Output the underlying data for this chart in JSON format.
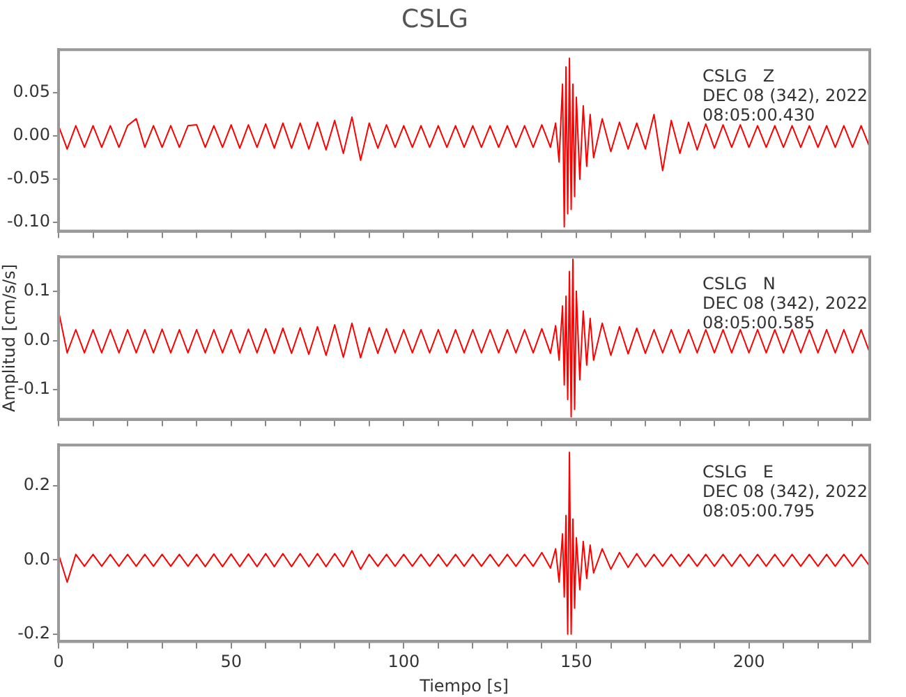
{
  "chart_data": [
    {
      "type": "line",
      "title": "CSLG",
      "annotations": [
        "CSLG   Z",
        "DEC 08 (342), 2022",
        "08:05:00.430"
      ],
      "marker": "none",
      "line_style": "solid",
      "grid": false,
      "legend": false,
      "tick_labels": "y",
      "x": [
        0,
        2.5,
        5,
        7.5,
        10,
        12.5,
        15,
        17.5,
        20,
        22.5,
        25,
        27.5,
        30,
        32.5,
        35,
        37.5,
        40,
        42.5,
        45,
        47.5,
        50,
        52.5,
        55,
        57.5,
        60,
        62.5,
        65,
        67.5,
        70,
        72.5,
        75,
        77.5,
        80,
        82.5,
        85,
        87.5,
        90,
        92.5,
        95,
        97.5,
        100,
        102.5,
        105,
        107.5,
        110,
        112.5,
        115,
        117.5,
        120,
        122.5,
        125,
        127.5,
        130,
        132.5,
        135,
        137.5,
        140,
        142.5,
        144,
        145,
        146,
        146.5,
        147,
        147.5,
        148,
        148.5,
        149,
        149.5,
        150,
        151,
        152,
        153,
        154,
        155,
        157.5,
        160,
        162.5,
        165,
        167.5,
        170,
        172.5,
        175,
        177.5,
        180,
        182.5,
        185,
        187.5,
        190,
        192.5,
        195,
        197.5,
        200,
        202.5,
        205,
        207.5,
        210,
        212.5,
        215,
        217.5,
        220,
        222.5,
        225,
        227.5,
        230,
        232.5,
        235
      ],
      "xlim": [
        0,
        235
      ],
      "xticks": [
        0,
        {
          "value": 10,
          "label": null
        },
        {
          "value": 20,
          "label": null
        },
        {
          "value": 30,
          "label": null
        },
        {
          "value": 40,
          "label": null
        },
        50,
        {
          "value": 60,
          "label": null
        },
        {
          "value": 70,
          "label": null
        },
        {
          "value": 80,
          "label": null
        },
        {
          "value": 90,
          "label": null
        },
        100,
        {
          "value": 110,
          "label": null
        },
        {
          "value": 120,
          "label": null
        },
        {
          "value": 130,
          "label": null
        },
        {
          "value": 140,
          "label": null
        },
        150,
        {
          "value": 160,
          "label": null
        },
        {
          "value": 170,
          "label": null
        },
        {
          "value": 180,
          "label": null
        },
        {
          "value": 190,
          "label": null
        },
        200,
        {
          "value": 210,
          "label": null
        },
        {
          "value": 220,
          "label": null
        },
        {
          "value": 230,
          "label": null
        }
      ],
      "ylim": [
        -0.11,
        0.1
      ],
      "yticks": [
        {
          "value": -0.1,
          "label": "-0.10"
        },
        {
          "value": -0.05,
          "label": "-0.05"
        },
        {
          "value": 0,
          "label": "0.00"
        },
        {
          "value": 0.05,
          "label": "0.05"
        }
      ],
      "series": [
        {
          "color": "#ff0000",
          "values": [
            0.012,
            -0.015,
            0.012,
            -0.013,
            0.012,
            -0.013,
            0.012,
            -0.013,
            0.012,
            0.02,
            -0.013,
            0.012,
            -0.013,
            0.012,
            -0.013,
            0.012,
            0.013,
            -0.013,
            0.012,
            -0.013,
            0.013,
            -0.014,
            0.013,
            -0.013,
            0.014,
            -0.014,
            0.015,
            -0.014,
            0.015,
            -0.015,
            0.016,
            -0.016,
            0.018,
            -0.02,
            0.022,
            -0.028,
            0.015,
            -0.014,
            0.013,
            -0.013,
            0.012,
            -0.013,
            0.012,
            -0.013,
            0.012,
            -0.013,
            0.012,
            -0.013,
            0.012,
            -0.013,
            0.012,
            -0.013,
            0.012,
            -0.013,
            0.012,
            -0.013,
            0.013,
            -0.013,
            0.015,
            -0.03,
            0.06,
            -0.105,
            0.08,
            -0.09,
            0.09,
            -0.085,
            0.06,
            -0.07,
            0.045,
            -0.05,
            0.035,
            -0.035,
            0.025,
            -0.025,
            0.02,
            -0.018,
            0.016,
            -0.015,
            0.015,
            -0.015,
            0.025,
            -0.04,
            0.018,
            -0.02,
            0.016,
            -0.016,
            0.014,
            -0.014,
            0.013,
            -0.013,
            0.013,
            -0.013,
            0.012,
            -0.013,
            0.012,
            -0.013,
            0.012,
            -0.013,
            0.012,
            -0.013,
            0.012,
            -0.013,
            0.012,
            -0.013,
            0.012,
            -0.013
          ]
        }
      ]
    },
    {
      "type": "line",
      "ylabel": "Amplitud [cm/s/s]",
      "annotations": [
        "CSLG   N",
        "DEC 08 (342), 2022",
        "08:05:00.585"
      ],
      "marker": "none",
      "line_style": "solid",
      "grid": false,
      "legend": false,
      "tick_labels": "y",
      "x": [
        0,
        2.5,
        5,
        7.5,
        10,
        12.5,
        15,
        17.5,
        20,
        22.5,
        25,
        27.5,
        30,
        32.5,
        35,
        37.5,
        40,
        42.5,
        45,
        47.5,
        50,
        52.5,
        55,
        57.5,
        60,
        62.5,
        65,
        67.5,
        70,
        72.5,
        75,
        77.5,
        80,
        82.5,
        85,
        87.5,
        90,
        92.5,
        95,
        97.5,
        100,
        102.5,
        105,
        107.5,
        110,
        112.5,
        115,
        117.5,
        120,
        122.5,
        125,
        127.5,
        130,
        132.5,
        135,
        137.5,
        140,
        142.5,
        144,
        145,
        146,
        146.5,
        147,
        147.5,
        148,
        148.5,
        149,
        149.5,
        150,
        151,
        152,
        153,
        154,
        155,
        157.5,
        160,
        162.5,
        165,
        167.5,
        170,
        172.5,
        175,
        177.5,
        180,
        182.5,
        185,
        187.5,
        190,
        192.5,
        195,
        197.5,
        200,
        202.5,
        205,
        207.5,
        210,
        212.5,
        215,
        217.5,
        220,
        222.5,
        225,
        227.5,
        230,
        232.5,
        235
      ],
      "xlim": [
        0,
        235
      ],
      "xticks": [
        0,
        {
          "value": 10,
          "label": null
        },
        {
          "value": 20,
          "label": null
        },
        {
          "value": 30,
          "label": null
        },
        {
          "value": 40,
          "label": null
        },
        50,
        {
          "value": 60,
          "label": null
        },
        {
          "value": 70,
          "label": null
        },
        {
          "value": 80,
          "label": null
        },
        {
          "value": 90,
          "label": null
        },
        100,
        {
          "value": 110,
          "label": null
        },
        {
          "value": 120,
          "label": null
        },
        {
          "value": 130,
          "label": null
        },
        {
          "value": 140,
          "label": null
        },
        150,
        {
          "value": 160,
          "label": null
        },
        {
          "value": 170,
          "label": null
        },
        {
          "value": 180,
          "label": null
        },
        {
          "value": 190,
          "label": null
        },
        200,
        {
          "value": 210,
          "label": null
        },
        {
          "value": 220,
          "label": null
        },
        {
          "value": 230,
          "label": null
        }
      ],
      "ylim": [
        -0.16,
        0.17
      ],
      "yticks": [
        {
          "value": -0.1,
          "label": "-0.1"
        },
        {
          "value": 0,
          "label": "0.0"
        },
        {
          "value": 0.1,
          "label": "0.1"
        }
      ],
      "series": [
        {
          "color": "#ff0000",
          "values": [
            0.06,
            -0.025,
            0.022,
            -0.025,
            0.022,
            -0.025,
            0.022,
            -0.025,
            0.022,
            -0.025,
            0.022,
            -0.025,
            0.023,
            -0.025,
            0.022,
            -0.025,
            0.022,
            -0.025,
            0.022,
            -0.025,
            0.022,
            -0.025,
            0.023,
            -0.025,
            0.024,
            -0.026,
            0.025,
            -0.026,
            0.026,
            -0.028,
            0.028,
            -0.03,
            0.032,
            -0.034,
            0.035,
            -0.035,
            0.026,
            -0.026,
            0.024,
            -0.025,
            0.022,
            -0.025,
            0.022,
            -0.025,
            0.022,
            -0.025,
            0.022,
            -0.025,
            0.022,
            -0.025,
            0.022,
            -0.025,
            0.022,
            -0.025,
            0.022,
            -0.025,
            0.024,
            -0.026,
            0.03,
            -0.04,
            0.07,
            -0.09,
            0.09,
            -0.12,
            0.14,
            -0.155,
            0.165,
            -0.14,
            0.1,
            -0.08,
            0.06,
            -0.05,
            0.045,
            -0.04,
            0.035,
            -0.03,
            0.028,
            -0.027,
            0.025,
            -0.026,
            0.022,
            -0.025,
            0.022,
            -0.025,
            0.022,
            -0.025,
            0.022,
            -0.025,
            0.022,
            -0.025,
            0.022,
            -0.025,
            0.022,
            -0.025,
            0.022,
            -0.025,
            0.022,
            -0.025,
            0.022,
            -0.025,
            0.022,
            -0.025,
            0.022,
            -0.025,
            0.022,
            -0.025
          ]
        }
      ]
    },
    {
      "type": "line",
      "xlabel": "Tiempo [s]",
      "annotations": [
        "CSLG   E",
        "DEC 08 (342), 2022",
        "08:05:00.795"
      ],
      "marker": "none",
      "line_style": "solid",
      "grid": false,
      "legend": false,
      "x": [
        0,
        2.5,
        5,
        7.5,
        10,
        12.5,
        15,
        17.5,
        20,
        22.5,
        25,
        27.5,
        30,
        32.5,
        35,
        37.5,
        40,
        42.5,
        45,
        47.5,
        50,
        52.5,
        55,
        57.5,
        60,
        62.5,
        65,
        67.5,
        70,
        72.5,
        75,
        77.5,
        80,
        82.5,
        85,
        87.5,
        90,
        92.5,
        95,
        97.5,
        100,
        102.5,
        105,
        107.5,
        110,
        112.5,
        115,
        117.5,
        120,
        122.5,
        125,
        127.5,
        130,
        132.5,
        135,
        137.5,
        140,
        142.5,
        144,
        145,
        146,
        146.5,
        147,
        147.5,
        148,
        148.5,
        149,
        149.5,
        150,
        151,
        152,
        153,
        154,
        155,
        157.5,
        160,
        162.5,
        165,
        167.5,
        170,
        172.5,
        175,
        177.5,
        180,
        182.5,
        185,
        187.5,
        190,
        192.5,
        195,
        197.5,
        200,
        202.5,
        205,
        207.5,
        210,
        212.5,
        215,
        217.5,
        220,
        222.5,
        225,
        227.5,
        230,
        232.5,
        235
      ],
      "xlim": [
        0,
        235
      ],
      "xticks": [
        0,
        {
          "value": 10,
          "label": null
        },
        {
          "value": 20,
          "label": null
        },
        {
          "value": 30,
          "label": null
        },
        {
          "value": 40,
          "label": null
        },
        50,
        {
          "value": 60,
          "label": null
        },
        {
          "value": 70,
          "label": null
        },
        {
          "value": 80,
          "label": null
        },
        {
          "value": 90,
          "label": null
        },
        100,
        {
          "value": 110,
          "label": null
        },
        {
          "value": 120,
          "label": null
        },
        {
          "value": 130,
          "label": null
        },
        {
          "value": 140,
          "label": null
        },
        150,
        {
          "value": 160,
          "label": null
        },
        {
          "value": 170,
          "label": null
        },
        {
          "value": 180,
          "label": null
        },
        {
          "value": 190,
          "label": null
        },
        200,
        {
          "value": 210,
          "label": null
        },
        {
          "value": 220,
          "label": null
        },
        {
          "value": 230,
          "label": null
        }
      ],
      "ylim": [
        -0.22,
        0.31
      ],
      "yticks": [
        {
          "value": -0.2,
          "label": "-0.2"
        },
        {
          "value": 0,
          "label": "0.0"
        },
        {
          "value": 0.2,
          "label": "0.2"
        }
      ],
      "series": [
        {
          "color": "#ff0000",
          "values": [
            0.015,
            -0.06,
            0.015,
            -0.017,
            0.015,
            -0.017,
            0.015,
            -0.017,
            0.015,
            -0.017,
            0.015,
            -0.017,
            0.015,
            -0.017,
            0.015,
            -0.017,
            0.015,
            -0.018,
            0.016,
            -0.018,
            0.016,
            -0.018,
            0.016,
            -0.018,
            0.017,
            -0.018,
            0.017,
            -0.018,
            0.017,
            -0.018,
            0.017,
            -0.018,
            0.017,
            -0.018,
            0.025,
            -0.025,
            0.015,
            -0.017,
            0.015,
            -0.017,
            0.015,
            -0.017,
            0.015,
            -0.017,
            0.015,
            -0.017,
            0.015,
            -0.017,
            0.015,
            -0.017,
            0.015,
            -0.017,
            0.015,
            -0.017,
            0.015,
            -0.017,
            0.02,
            -0.022,
            0.03,
            -0.06,
            0.07,
            -0.1,
            0.12,
            -0.2,
            0.29,
            -0.2,
            0.11,
            -0.13,
            0.06,
            -0.08,
            0.05,
            -0.05,
            0.04,
            -0.035,
            0.03,
            -0.025,
            0.02,
            -0.02,
            0.017,
            -0.018,
            0.015,
            -0.017,
            0.015,
            -0.017,
            0.015,
            -0.017,
            0.015,
            -0.017,
            0.015,
            -0.017,
            0.015,
            -0.017,
            0.015,
            -0.017,
            0.015,
            -0.017,
            0.015,
            -0.017,
            0.015,
            -0.017,
            0.015,
            -0.017,
            0.015,
            -0.017,
            0.015,
            -0.017
          ]
        }
      ]
    }
  ]
}
